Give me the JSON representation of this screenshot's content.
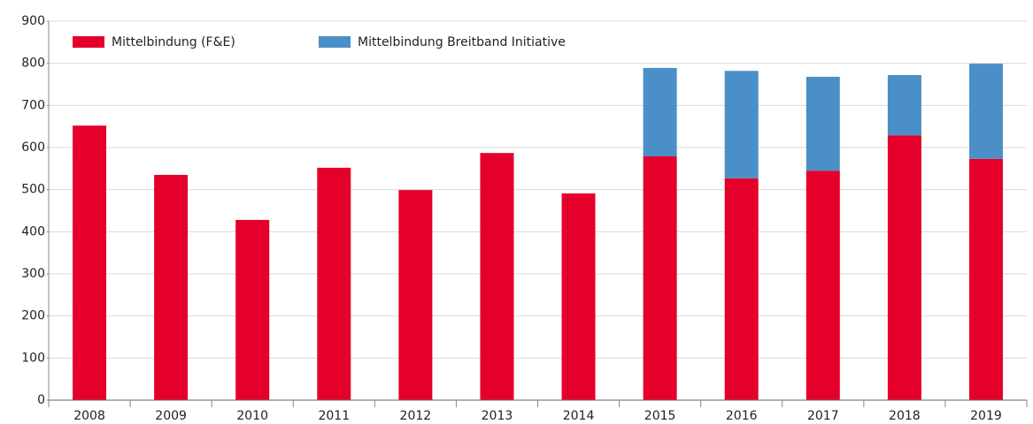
{
  "chart_data": {
    "type": "stacked_bar",
    "categories": [
      "2008",
      "2009",
      "2010",
      "2011",
      "2012",
      "2013",
      "2014",
      "2015",
      "2016",
      "2017",
      "2018",
      "2019"
    ],
    "series": [
      {
        "name": "Mittelbindung (F&E)",
        "color": "#e4002b",
        "values": [
          652,
          535,
          428,
          552,
          499,
          587,
          491,
          579,
          527,
          545,
          629,
          573
        ]
      },
      {
        "name": "Mittelbindung Breitband Initiative",
        "color": "#4a8fc8",
        "values": [
          null,
          null,
          null,
          null,
          null,
          null,
          null,
          210,
          255,
          223,
          143,
          226
        ]
      }
    ],
    "ylim": [
      0,
      900
    ],
    "yticks": [
      0,
      100,
      200,
      300,
      400,
      500,
      600,
      700,
      800,
      900
    ],
    "grid": true,
    "legend": "top-left"
  }
}
